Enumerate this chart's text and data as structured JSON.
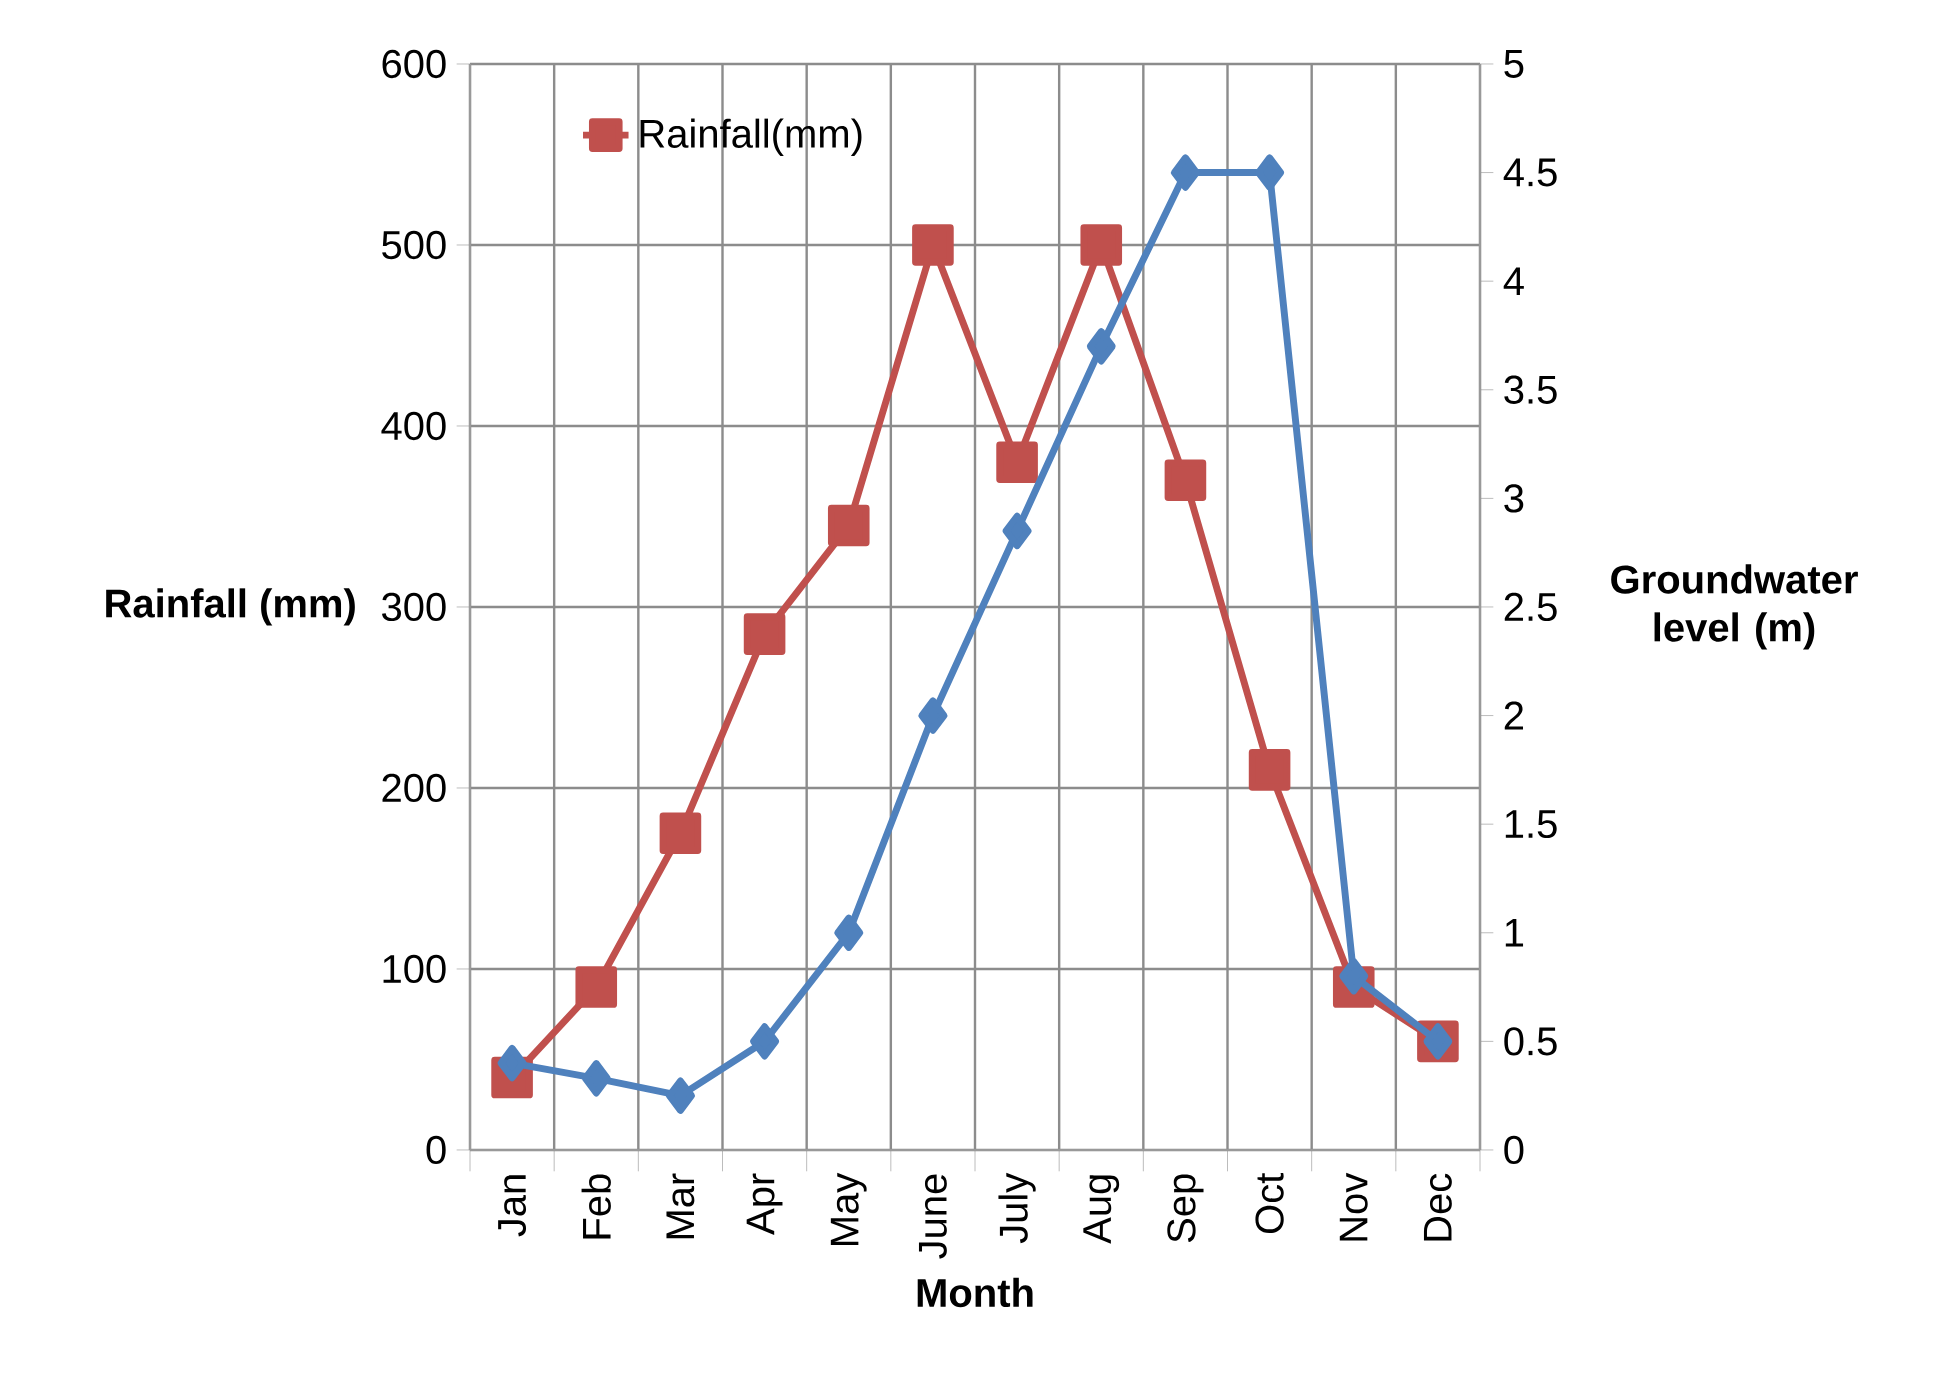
{
  "chart_data": {
    "type": "line",
    "xlabel": "Month",
    "ylabel": "Rainfall (mm)",
    "y2label": "Groundwater level (m)",
    "categories": [
      "Jan",
      "Feb",
      "Mar",
      "Apr",
      "May",
      "June",
      "July",
      "Aug",
      "Sep",
      "Oct",
      "Nov",
      "Dec"
    ],
    "series": [
      {
        "name": "Rainfall(mm)",
        "color": "#c0504d",
        "marker": "square",
        "values": [
          40,
          90,
          175,
          285,
          345,
          500,
          380,
          500,
          370,
          210,
          90,
          60
        ]
      },
      {
        "color": "#4f81bd",
        "marker": "diamond",
        "axis": "y2",
        "values": [
          0.4,
          0.33,
          0.25,
          0.5,
          1.0,
          2.0,
          2.85,
          3.7,
          4.5,
          4.5,
          0.8,
          0.5
        ]
      }
    ],
    "ylim": [
      0,
      600
    ],
    "yticks": [
      0,
      100,
      200,
      300,
      400,
      500,
      600
    ],
    "y2lim": [
      0,
      5
    ],
    "y2ticks": [
      0,
      0.5,
      1,
      1.5,
      2,
      2.5,
      3,
      3.5,
      4,
      4.5,
      5
    ],
    "grid": true,
    "legend": "top left"
  }
}
